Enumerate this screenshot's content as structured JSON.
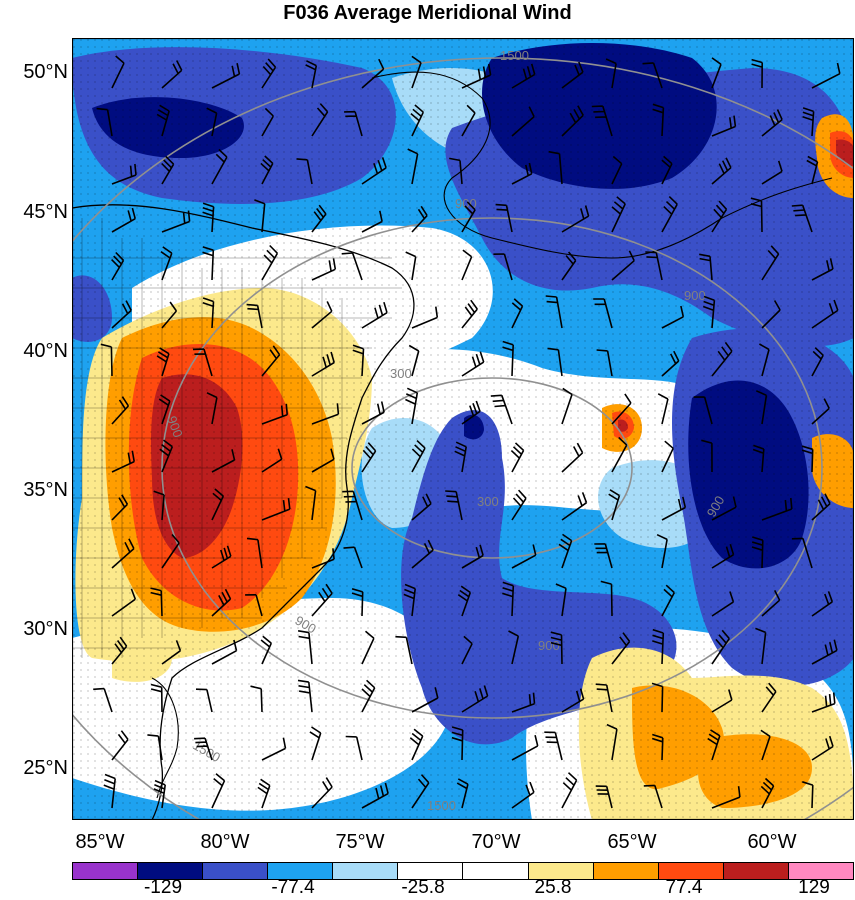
{
  "title": "F036 Average Meridional Wind",
  "lat_labels": [
    "50°N",
    "45°N",
    "40°N",
    "35°N",
    "30°N",
    "25°N"
  ],
  "lon_labels": [
    "85°W",
    "80°W",
    "75°W",
    "70°W",
    "65°W",
    "60°W"
  ],
  "contour_labels": [
    "1500",
    "1500",
    "1500",
    "900",
    "900",
    "900",
    "900",
    "900",
    "900",
    "300",
    "300"
  ],
  "colorbar": {
    "colors": [
      "#9933cc",
      "#000c80",
      "#3a50c8",
      "#1ea2f0",
      "#a8dcf8",
      "#ffffff",
      "#ffffff",
      "#fce98c",
      "#ff9e00",
      "#ff4a10",
      "#bb1e1e",
      "#ff88c0"
    ],
    "tick_labels": [
      "-129",
      "-77.4",
      "-25.8",
      "25.8",
      "77.4",
      "129"
    ]
  },
  "legend_colors": {
    "strong_negative": "#000c80",
    "negative": "#3a50c8",
    "weak_negative": "#1ea2f0",
    "very_weak_negative": "#a8dcf8",
    "weak_positive": "#fce98c",
    "positive": "#ff9e00",
    "strong_positive": "#ff4a10",
    "very_strong_positive": "#bb1e1e"
  }
}
